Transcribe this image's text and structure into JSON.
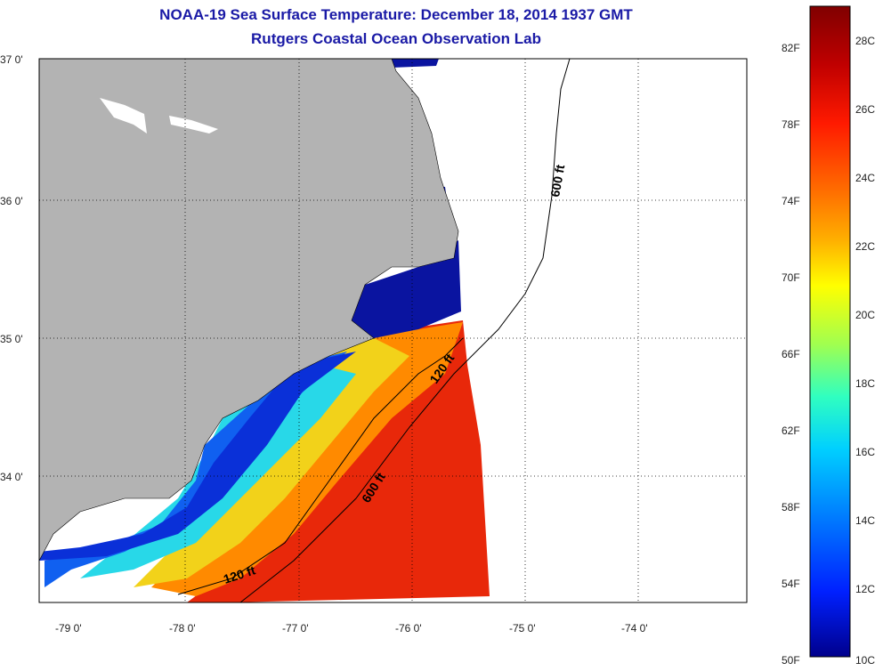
{
  "header": {
    "title": "NOAA-19 Sea Surface Temperature:  December 18, 2014 1937 GMT",
    "subtitle": "Rutgers Coastal Ocean Observation Lab"
  },
  "map": {
    "lat_ticks": [
      "37 0'",
      "36 0'",
      "35 0'",
      "34 0'"
    ],
    "lon_ticks": [
      "-79 0'",
      "-78 0'",
      "-77 0'",
      "-76 0'",
      "-75 0'",
      "-74 0'"
    ],
    "contours": [
      "600 ft",
      "120 ft",
      "600 ft",
      "120 ft"
    ],
    "land_color": "#b3b3b3",
    "cold_water_color": "#0a14a0"
  },
  "colorbar": {
    "fahrenheit_labels": [
      "82F",
      "78F",
      "74F",
      "70F",
      "66F",
      "62F",
      "58F",
      "54F",
      "50F"
    ],
    "celsius_labels": [
      "28C",
      "26C",
      "24C",
      "22C",
      "20C",
      "18C",
      "16C",
      "14C",
      "12C",
      "10C"
    ],
    "gradient_colors": [
      "#800000",
      "#c00000",
      "#ff1a00",
      "#ff6a00",
      "#ffb000",
      "#ffff00",
      "#a0ff50",
      "#30ffc0",
      "#00d0ff",
      "#0080ff",
      "#0020ff",
      "#00008c"
    ]
  }
}
